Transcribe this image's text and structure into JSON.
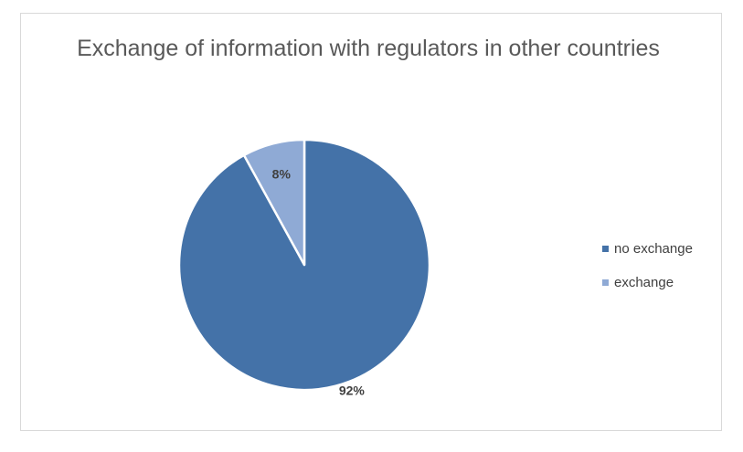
{
  "chart_data": {
    "type": "pie",
    "title": "Exchange of information with regulators in other countries",
    "series": [
      {
        "name": "",
        "categories": [
          "no exchange",
          "exchange"
        ],
        "values": [
          92,
          8
        ],
        "labels": [
          "92%",
          "8%"
        ],
        "colors": [
          "#4472a8",
          "#8faad5"
        ]
      }
    ],
    "legend": {
      "position": "right",
      "entries": [
        "no exchange",
        "exchange"
      ]
    }
  }
}
